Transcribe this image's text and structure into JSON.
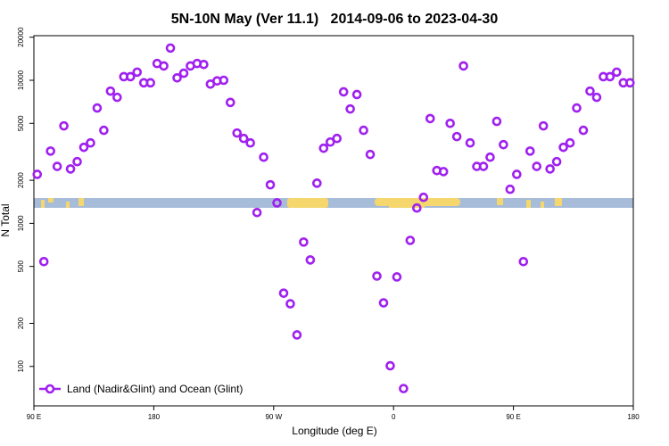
{
  "chart_data": {
    "type": "scatter",
    "title": "5N-10N May (Ver 11.1)   2014-09-06 to 2023-04-30",
    "x_label": "Longitude (deg E)",
    "y_label": "N Total",
    "yscale": "log",
    "xlim": [
      90,
      540
    ],
    "xticks": [
      {
        "value": 90,
        "label": "90 E"
      },
      {
        "value": 180,
        "label": "180"
      },
      {
        "value": 270,
        "label": "90 W"
      },
      {
        "value": 360,
        "label": "0"
      },
      {
        "value": 450,
        "label": "90 E"
      },
      {
        "value": 540,
        "label": "180"
      }
    ],
    "ylim": [
      53,
      20500
    ],
    "yticks": [
      100,
      200,
      500,
      1000,
      2000,
      5000,
      10000,
      20000
    ],
    "legend": "bottom-left",
    "series": [
      {
        "name": "Land (Nadir&Glint) and Ocean (Glint)",
        "color": "#a020f0",
        "x": [
          92.5,
          97.5,
          102.5,
          107.5,
          112.5,
          117.5,
          122.5,
          127.5,
          132.5,
          137.5,
          142.5,
          147.5,
          152.5,
          157.5,
          162.5,
          167.5,
          172.5,
          177.5,
          182.5,
          187.5,
          192.5,
          197.5,
          202.5,
          207.5,
          212.5,
          217.5,
          222.5,
          227.5,
          232.5,
          237.5,
          242.5,
          247.5,
          252.5,
          257.5,
          262.5,
          267.5,
          272.5,
          277.5,
          282.5,
          287.5,
          292.5,
          297.5,
          302.5,
          307.5,
          312.5,
          317.5,
          322.5,
          327.5,
          332.5,
          337.5,
          342.5,
          347.5,
          352.5,
          357.5,
          362.5,
          367.5,
          372.5,
          377.5,
          382.5,
          387.5,
          392.5,
          397.5,
          402.5,
          407.5,
          412.5,
          417.5,
          422.5,
          427.5,
          432.5,
          437.5,
          442.5,
          447.5,
          452.5,
          457.5,
          462.5,
          467.5,
          472.5,
          477.5,
          482.5,
          487.5,
          492.5,
          497.5,
          502.5,
          507.5,
          512.5,
          517.5,
          522.5,
          527.5,
          532.5,
          537.5
        ],
        "values": [
          2200,
          540,
          3200,
          2500,
          4800,
          2400,
          2700,
          3400,
          3650,
          6400,
          4470,
          8400,
          7600,
          10600,
          10600,
          11400,
          9600,
          9600,
          13100,
          12600,
          16800,
          10400,
          11200,
          12600,
          13100,
          12900,
          9400,
          9900,
          10000,
          7000,
          4280,
          3920,
          3650,
          1190,
          2900,
          1860,
          1390,
          325,
          274,
          166,
          740,
          555,
          1910,
          3350,
          3700,
          3920,
          8300,
          6300,
          7950,
          4470,
          3030,
          428,
          278,
          101,
          422,
          70,
          760,
          1280,
          1520,
          5400,
          2340,
          2300,
          5000,
          4040,
          12600,
          3650,
          2500,
          2500,
          2900,
          5160,
          3550,
          1730,
          2200,
          540,
          3200,
          2500,
          4800,
          2400,
          2700,
          3400,
          3650,
          6400,
          4470,
          8400,
          7600,
          10600,
          10600,
          11400,
          9600,
          9600
        ]
      }
    ]
  }
}
